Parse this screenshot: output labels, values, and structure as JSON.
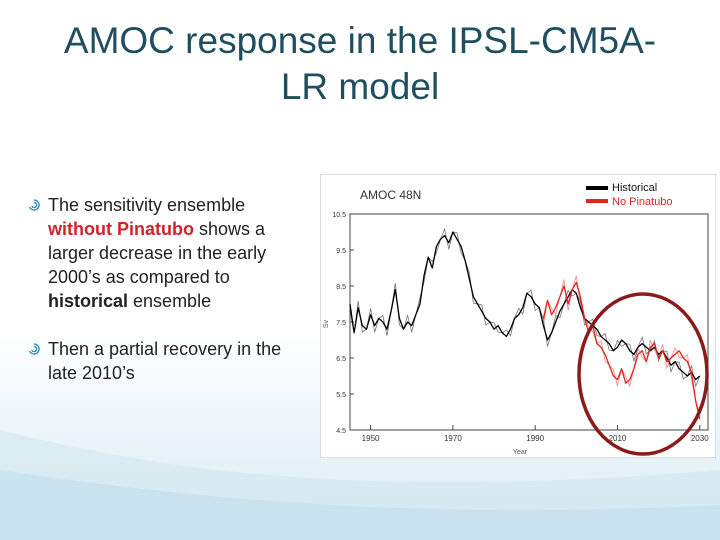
{
  "slide": {
    "title": "AMOC response in the IPSL-CM5A-LR model",
    "accent_color": "#1f4e5f",
    "bullet_icon": "swirl-bullet-icon"
  },
  "bullets": [
    {
      "parts": [
        {
          "text": "The sensitivity ensemble ",
          "style": "normal"
        },
        {
          "text": "without Pinatubo",
          "style": "red"
        },
        {
          "text": " shows a larger decrease in the early 2000’s as compared to ",
          "style": "normal"
        },
        {
          "text": "historical",
          "style": "bold"
        },
        {
          "text": " ensemble",
          "style": "normal"
        }
      ]
    },
    {
      "parts": [
        {
          "text": "Then a partial recovery in the late 2010’s",
          "style": "normal"
        }
      ]
    }
  ],
  "chart_data": {
    "type": "line",
    "title": "AMOC 48N",
    "xlabel": "Year",
    "ylabel": "Sv",
    "xlim": [
      1945,
      2032
    ],
    "ylim": [
      4.5,
      10.5
    ],
    "xticks": [
      1950,
      1970,
      1990,
      2010,
      2030
    ],
    "yticks": [
      "10.5",
      "9.5",
      "8.5",
      "7.5",
      "6.5",
      "5.5",
      "4.5"
    ],
    "legend_position": "top-right",
    "annotation": "circle highlighting 2000–2030",
    "series": [
      {
        "name": "Historical",
        "color": "#000000",
        "x": [
          1945,
          1946,
          1947,
          1948,
          1949,
          1950,
          1951,
          1952,
          1953,
          1954,
          1955,
          1956,
          1957,
          1958,
          1959,
          1960,
          1961,
          1962,
          1963,
          1964,
          1965,
          1966,
          1967,
          1968,
          1969,
          1970,
          1971,
          1972,
          1973,
          1974,
          1975,
          1976,
          1977,
          1978,
          1979,
          1980,
          1981,
          1982,
          1983,
          1984,
          1985,
          1986,
          1987,
          1988,
          1989,
          1990,
          1991,
          1992,
          1993,
          1994,
          1995,
          1996,
          1997,
          1998,
          1999,
          2000,
          2001,
          2002,
          2003,
          2004,
          2005,
          2006,
          2007,
          2008,
          2009,
          2010,
          2011,
          2012,
          2013,
          2014,
          2015,
          2016,
          2017,
          2018,
          2019,
          2020,
          2021,
          2022,
          2023,
          2024,
          2025,
          2026,
          2027,
          2028,
          2029,
          2030
        ],
        "values": [
          8.0,
          7.2,
          7.9,
          7.4,
          7.3,
          7.7,
          7.4,
          7.6,
          7.5,
          7.3,
          7.8,
          8.4,
          7.6,
          7.3,
          7.5,
          7.4,
          7.7,
          8.0,
          8.8,
          9.3,
          9.0,
          9.6,
          9.8,
          9.9,
          9.7,
          10.0,
          9.8,
          9.6,
          9.2,
          8.7,
          8.2,
          8.0,
          7.8,
          7.6,
          7.5,
          7.3,
          7.4,
          7.2,
          7.1,
          7.3,
          7.6,
          7.7,
          7.9,
          8.3,
          8.2,
          8.0,
          7.9,
          7.4,
          7.0,
          7.2,
          7.5,
          7.8,
          8.0,
          8.2,
          8.4,
          8.3,
          7.9,
          7.6,
          7.5,
          7.4,
          7.3,
          7.1,
          7.0,
          6.9,
          6.7,
          6.8,
          7.0,
          6.9,
          6.7,
          6.6,
          6.8,
          6.9,
          6.8,
          6.7,
          6.8,
          6.6,
          6.7,
          6.5,
          6.3,
          6.4,
          6.2,
          6.1,
          6.0,
          6.1,
          5.9,
          6.0
        ]
      },
      {
        "name": "No Pinatubo",
        "color": "#e0241f",
        "x": [
          1992,
          1993,
          1994,
          1995,
          1996,
          1997,
          1998,
          1999,
          2000,
          2001,
          2002,
          2003,
          2004,
          2005,
          2006,
          2007,
          2008,
          2009,
          2010,
          2011,
          2012,
          2013,
          2014,
          2015,
          2016,
          2017,
          2018,
          2019,
          2020,
          2021,
          2022,
          2023,
          2024,
          2025,
          2026,
          2027,
          2028,
          2029,
          2030
        ],
        "values": [
          7.6,
          8.1,
          7.7,
          7.9,
          8.2,
          8.5,
          8.0,
          8.4,
          8.6,
          8.2,
          7.6,
          7.2,
          7.4,
          6.9,
          6.8,
          6.6,
          6.3,
          6.0,
          5.9,
          6.2,
          5.8,
          5.9,
          6.2,
          6.6,
          6.7,
          6.4,
          6.8,
          6.9,
          6.5,
          6.7,
          6.4,
          6.5,
          6.6,
          6.7,
          6.5,
          6.4,
          6.1,
          5.3,
          4.8
        ]
      }
    ]
  }
}
